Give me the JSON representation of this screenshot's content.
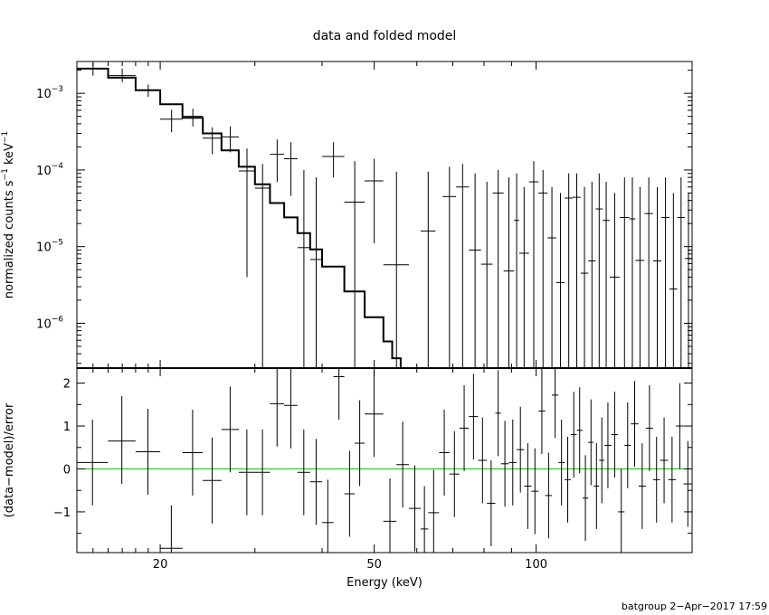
{
  "chart_data": [
    {
      "type": "line",
      "title": "data and folded model",
      "xlabel": "Energy (keV)",
      "ylabel": "normalized counts s⁻¹ keV⁻¹",
      "ylabel_parts": {
        "a": "normalized counts s",
        "b": "−1",
        "c": " keV",
        "d": "−1"
      },
      "xscale": "log",
      "yscale": "log",
      "xlim": [
        14.0,
        195.0
      ],
      "ylim": [
        2.6e-07,
        0.0026
      ],
      "x_ticks": [
        {
          "v": 20,
          "label": "20"
        },
        {
          "v": 50,
          "label": "50"
        },
        {
          "v": 100,
          "label": "100"
        }
      ],
      "y_ticks": [
        {
          "v": 0.001,
          "base": "10",
          "exp": "−3"
        },
        {
          "v": 0.0001,
          "base": "10",
          "exp": "−4"
        },
        {
          "v": 1e-05,
          "base": "10",
          "exp": "−5"
        },
        {
          "v": 1e-06,
          "base": "10",
          "exp": "−6"
        }
      ],
      "data_points": [
        {
          "x": 15.0,
          "xlo": 14.0,
          "xhi": 16.0,
          "y": 0.0021,
          "ylo": 0.0017,
          "yhi": 0.0025
        },
        {
          "x": 17.0,
          "xlo": 16.0,
          "xhi": 18.0,
          "y": 0.0017,
          "ylo": 0.0014,
          "yhi": 0.0021
        },
        {
          "x": 19.0,
          "xlo": 18.0,
          "xhi": 20.0,
          "y": 0.0011,
          "ylo": 0.0009,
          "yhi": 0.0013
        },
        {
          "x": 21.0,
          "xlo": 20.0,
          "xhi": 22.0,
          "y": 0.00046,
          "ylo": 0.00031,
          "yhi": 0.00061
        },
        {
          "x": 23.0,
          "xlo": 22.0,
          "xhi": 24.0,
          "y": 0.0005,
          "ylo": 0.00037,
          "yhi": 0.00063
        },
        {
          "x": 25.0,
          "xlo": 24.0,
          "xhi": 26.0,
          "y": 0.00026,
          "ylo": 0.00016,
          "yhi": 0.00036
        },
        {
          "x": 27.0,
          "xlo": 26.0,
          "xhi": 28.0,
          "y": 0.00027,
          "ylo": 0.00017,
          "yhi": 0.00037
        },
        {
          "x": 29.0,
          "xlo": 28.0,
          "xhi": 30.0,
          "y": 9.7e-05,
          "ylo": 4e-06,
          "yhi": 0.00019
        },
        {
          "x": 31.0,
          "xlo": 30.0,
          "xhi": 32.0,
          "y": 5.8e-05,
          "ylo": 2.6e-07,
          "yhi": 0.00012
        },
        {
          "x": 33.0,
          "xlo": 32.0,
          "xhi": 34.0,
          "y": 0.00016,
          "ylo": 7e-05,
          "yhi": 0.00025
        },
        {
          "x": 35.0,
          "xlo": 34.0,
          "xhi": 36.0,
          "y": 0.00014,
          "ylo": 4.6e-05,
          "yhi": 0.00023
        },
        {
          "x": 37.0,
          "xlo": 36.0,
          "xhi": 38.0,
          "y": 9.7e-06,
          "ylo": 2.6e-07,
          "yhi": 0.0001
        },
        {
          "x": 39.0,
          "xlo": 38.0,
          "xhi": 40.0,
          "y": 6.8e-06,
          "ylo": 2.6e-07,
          "yhi": 8e-05
        },
        {
          "x": 42.0,
          "xlo": 40.0,
          "xhi": 44.0,
          "y": 0.00015,
          "ylo": 8e-05,
          "yhi": 0.00023
        },
        {
          "x": 46.0,
          "xlo": 44.0,
          "xhi": 48.0,
          "y": 3.8e-05,
          "ylo": 2.6e-07,
          "yhi": 0.00013
        },
        {
          "x": 50.0,
          "xlo": 48.0,
          "xhi": 52.0,
          "y": 7.2e-05,
          "ylo": 1.1e-05,
          "yhi": 0.00014
        },
        {
          "x": 55.0,
          "xlo": 52.0,
          "xhi": 58.0,
          "y": 5.8e-06,
          "ylo": 2.6e-07,
          "yhi": 9.5e-05
        },
        {
          "x": 63.0,
          "xlo": 61.0,
          "xhi": 65.0,
          "y": 1.6e-05,
          "ylo": 2.6e-07,
          "yhi": 9.5e-05
        },
        {
          "x": 69.0,
          "xlo": 67.0,
          "xhi": 71.0,
          "y": 4.5e-05,
          "ylo": 2.6e-07,
          "yhi": 0.00011
        },
        {
          "x": 73.0,
          "xlo": 71.0,
          "xhi": 75.0,
          "y": 6e-05,
          "ylo": 2.6e-07,
          "yhi": 0.00012
        },
        {
          "x": 77.0,
          "xlo": 75.0,
          "xhi": 79.0,
          "y": 9e-06,
          "ylo": 2.6e-07,
          "yhi": 9e-05
        },
        {
          "x": 81.0,
          "xlo": 79.0,
          "xhi": 83.0,
          "y": 5.9e-06,
          "ylo": 2.6e-07,
          "yhi": 7e-05
        },
        {
          "x": 85.0,
          "xlo": 83.0,
          "xhi": 87.0,
          "y": 5e-05,
          "ylo": 2.6e-07,
          "yhi": 0.0001
        },
        {
          "x": 89.0,
          "xlo": 87.0,
          "xhi": 91.0,
          "y": 4.8e-06,
          "ylo": 2.6e-07,
          "yhi": 8e-05
        },
        {
          "x": 92.0,
          "xlo": 91.0,
          "xhi": 93.0,
          "y": 2.2e-05,
          "ylo": 2.6e-07,
          "yhi": 9e-05
        },
        {
          "x": 95.0,
          "xlo": 93.0,
          "xhi": 97.0,
          "y": 8.2e-06,
          "ylo": 2.6e-07,
          "yhi": 6e-05
        },
        {
          "x": 99.0,
          "xlo": 97.0,
          "xhi": 101.0,
          "y": 7e-05,
          "ylo": 2.6e-07,
          "yhi": 0.00013
        },
        {
          "x": 103.0,
          "xlo": 101.0,
          "xhi": 105.0,
          "y": 5e-05,
          "ylo": 2.6e-07,
          "yhi": 0.0001
        },
        {
          "x": 107.0,
          "xlo": 105.0,
          "xhi": 109.0,
          "y": 1.3e-05,
          "ylo": 2.6e-07,
          "yhi": 6e-05
        },
        {
          "x": 111.0,
          "xlo": 109.0,
          "xhi": 113.0,
          "y": 3.4e-06,
          "ylo": 2.6e-07,
          "yhi": 5e-05
        },
        {
          "x": 115.0,
          "xlo": 113.0,
          "xhi": 117.0,
          "y": 4.3e-05,
          "ylo": 2.6e-07,
          "yhi": 9e-05
        },
        {
          "x": 119.0,
          "xlo": 117.0,
          "xhi": 121.0,
          "y": 4.4e-05,
          "ylo": 2.6e-07,
          "yhi": 9e-05
        },
        {
          "x": 123.0,
          "xlo": 121.0,
          "xhi": 125.0,
          "y": 4.5e-06,
          "ylo": 2.6e-07,
          "yhi": 6e-05
        },
        {
          "x": 127.0,
          "xlo": 125.0,
          "xhi": 129.0,
          "y": 6.5e-06,
          "ylo": 2.6e-07,
          "yhi": 7e-05
        },
        {
          "x": 131.0,
          "xlo": 129.0,
          "xhi": 133.0,
          "y": 3.1e-05,
          "ylo": 2.6e-07,
          "yhi": 9e-05
        },
        {
          "x": 135.0,
          "xlo": 133.0,
          "xhi": 137.0,
          "y": 2.2e-05,
          "ylo": 2.6e-07,
          "yhi": 7e-05
        },
        {
          "x": 140.0,
          "xlo": 137.0,
          "xhi": 143.0,
          "y": 4e-06,
          "ylo": 2.6e-07,
          "yhi": 5e-05
        },
        {
          "x": 146.0,
          "xlo": 143.0,
          "xhi": 149.0,
          "y": 2.4e-05,
          "ylo": 2.6e-07,
          "yhi": 8e-05
        },
        {
          "x": 151.0,
          "xlo": 149.0,
          "xhi": 153.0,
          "y": 2.3e-05,
          "ylo": 2.6e-07,
          "yhi": 8e-05
        },
        {
          "x": 156.0,
          "xlo": 153.0,
          "xhi": 159.0,
          "y": 6.6e-06,
          "ylo": 2.6e-07,
          "yhi": 6e-05
        },
        {
          "x": 162.0,
          "xlo": 159.0,
          "xhi": 165.0,
          "y": 2.7e-05,
          "ylo": 2.6e-07,
          "yhi": 8e-05
        },
        {
          "x": 168.0,
          "xlo": 165.0,
          "xhi": 171.0,
          "y": 6.5e-06,
          "ylo": 2.6e-07,
          "yhi": 6e-05
        },
        {
          "x": 174.0,
          "xlo": 171.0,
          "xhi": 177.0,
          "y": 2.4e-05,
          "ylo": 2.6e-07,
          "yhi": 8e-05
        },
        {
          "x": 180.0,
          "xlo": 177.0,
          "xhi": 183.0,
          "y": 2.8e-06,
          "ylo": 2.6e-07,
          "yhi": 5e-05
        },
        {
          "x": 186.0,
          "xlo": 183.0,
          "xhi": 189.0,
          "y": 2.4e-05,
          "ylo": 2.6e-07,
          "yhi": 8e-05
        },
        {
          "x": 192.0,
          "xlo": 189.0,
          "xhi": 195.0,
          "y": 7e-06,
          "ylo": 2.6e-07,
          "yhi": 5e-05
        }
      ],
      "model_steps": [
        {
          "xlo": 14.0,
          "xhi": 16.0,
          "y": 0.0021
        },
        {
          "xlo": 16.0,
          "xhi": 18.0,
          "y": 0.0016
        },
        {
          "xlo": 18.0,
          "xhi": 20.0,
          "y": 0.0011
        },
        {
          "xlo": 20.0,
          "xhi": 22.0,
          "y": 0.00072
        },
        {
          "xlo": 22.0,
          "xhi": 24.0,
          "y": 0.00048
        },
        {
          "xlo": 24.0,
          "xhi": 26.0,
          "y": 0.0003
        },
        {
          "xlo": 26.0,
          "xhi": 28.0,
          "y": 0.00018
        },
        {
          "xlo": 28.0,
          "xhi": 30.0,
          "y": 0.00011
        },
        {
          "xlo": 30.0,
          "xhi": 32.0,
          "y": 6.5e-05
        },
        {
          "xlo": 32.0,
          "xhi": 34.0,
          "y": 3.7e-05
        },
        {
          "xlo": 34.0,
          "xhi": 36.0,
          "y": 2.4e-05
        },
        {
          "xlo": 36.0,
          "xhi": 38.0,
          "y": 1.5e-05
        },
        {
          "xlo": 38.0,
          "xhi": 40.0,
          "y": 9.2e-06
        },
        {
          "xlo": 40.0,
          "xhi": 44.0,
          "y": 5.5e-06
        },
        {
          "xlo": 44.0,
          "xhi": 48.0,
          "y": 2.6e-06
        },
        {
          "xlo": 48.0,
          "xhi": 52.0,
          "y": 1.2e-06
        },
        {
          "xlo": 52.0,
          "xhi": 54.0,
          "y": 5.8e-07
        },
        {
          "xlo": 54.0,
          "xhi": 56.0,
          "y": 3.5e-07
        }
      ]
    },
    {
      "type": "scatter",
      "xlabel": "Energy (keV)",
      "ylabel": "(data−model)/error",
      "xscale": "log",
      "xlim": [
        14.0,
        195.0
      ],
      "ylim": [
        -1.95,
        2.35
      ],
      "y_ticks": [
        {
          "v": 2,
          "label": "2"
        },
        {
          "v": 1,
          "label": "1"
        },
        {
          "v": 0,
          "label": "0"
        },
        {
          "v": -1,
          "label": "−1"
        }
      ],
      "zero_line": 0,
      "zero_line_color": "#00cc00",
      "residuals": [
        {
          "xlo": 14.0,
          "xhi": 16.0,
          "y": 0.15,
          "ylo": -0.85,
          "yhi": 1.15
        },
        {
          "xlo": 16.0,
          "xhi": 18.0,
          "y": 0.65,
          "ylo": -0.35,
          "yhi": 1.7
        },
        {
          "xlo": 18.0,
          "xhi": 20.0,
          "y": 0.4,
          "ylo": -0.6,
          "yhi": 1.4
        },
        {
          "xlo": 20.0,
          "xhi": 22.0,
          "y": -1.85,
          "ylo": -1.95,
          "yhi": -0.85
        },
        {
          "xlo": 22.0,
          "xhi": 24.0,
          "y": 0.38,
          "ylo": -0.62,
          "yhi": 1.38
        },
        {
          "xlo": 24.0,
          "xhi": 26.0,
          "y": -0.27,
          "ylo": -1.27,
          "yhi": 0.73
        },
        {
          "xlo": 26.0,
          "xhi": 28.0,
          "y": 0.92,
          "ylo": -0.08,
          "yhi": 1.92
        },
        {
          "xlo": 28.0,
          "xhi": 30.0,
          "y": -0.08,
          "ylo": -1.08,
          "yhi": 0.92
        },
        {
          "xlo": 30.0,
          "xhi": 32.0,
          "y": -0.08,
          "ylo": -1.08,
          "yhi": 0.92
        },
        {
          "xlo": 32.0,
          "xhi": 34.0,
          "y": 1.52,
          "ylo": 0.52,
          "yhi": 2.35
        },
        {
          "xlo": 34.0,
          "xhi": 36.0,
          "y": 1.48,
          "ylo": 0.48,
          "yhi": 2.35
        },
        {
          "xlo": 36.0,
          "xhi": 38.0,
          "y": -0.08,
          "ylo": -1.08,
          "yhi": 0.92
        },
        {
          "xlo": 38.0,
          "xhi": 40.0,
          "y": -0.3,
          "ylo": -1.3,
          "yhi": 0.7
        },
        {
          "xlo": 40.0,
          "xhi": 42.0,
          "y": -1.25,
          "ylo": -1.95,
          "yhi": -0.25
        },
        {
          "xlo": 42.0,
          "xhi": 44.0,
          "y": 2.15,
          "ylo": 1.15,
          "yhi": 2.35
        },
        {
          "xlo": 44.0,
          "xhi": 46.0,
          "y": -0.58,
          "ylo": -1.58,
          "yhi": 0.42
        },
        {
          "xlo": 46.0,
          "xhi": 48.0,
          "y": 0.6,
          "ylo": -0.4,
          "yhi": 1.6
        },
        {
          "xlo": 48.0,
          "xhi": 52.0,
          "y": 1.28,
          "ylo": 0.28,
          "yhi": 2.28
        },
        {
          "xlo": 52.0,
          "xhi": 55.0,
          "y": -1.22,
          "ylo": -1.95,
          "yhi": -0.22
        },
        {
          "xlo": 55.0,
          "xhi": 58.0,
          "y": 0.1,
          "ylo": -0.9,
          "yhi": 1.1
        },
        {
          "xlo": 58.0,
          "xhi": 61.0,
          "y": -0.92,
          "ylo": -1.92,
          "yhi": 0.08
        },
        {
          "xlo": 61.0,
          "xhi": 63.0,
          "y": -1.4,
          "ylo": -1.95,
          "yhi": -0.4
        },
        {
          "xlo": 63.0,
          "xhi": 66.0,
          "y": -1.02,
          "ylo": -1.95,
          "yhi": -0.02
        },
        {
          "xlo": 66.0,
          "xhi": 69.0,
          "y": 0.38,
          "ylo": -0.62,
          "yhi": 1.38
        },
        {
          "xlo": 69.0,
          "xhi": 72.0,
          "y": -0.12,
          "ylo": -1.12,
          "yhi": 0.88
        },
        {
          "xlo": 72.0,
          "xhi": 75.0,
          "y": 0.95,
          "ylo": -0.05,
          "yhi": 1.95
        },
        {
          "xlo": 75.0,
          "xhi": 78.0,
          "y": 1.22,
          "ylo": 0.22,
          "yhi": 2.22
        },
        {
          "xlo": 78.0,
          "xhi": 81.0,
          "y": 0.2,
          "ylo": -0.8,
          "yhi": 1.2
        },
        {
          "xlo": 81.0,
          "xhi": 84.0,
          "y": -0.8,
          "ylo": -1.8,
          "yhi": 0.2
        },
        {
          "xlo": 84.0,
          "xhi": 86.0,
          "y": 1.3,
          "ylo": 0.3,
          "yhi": 2.3
        },
        {
          "xlo": 86.0,
          "xhi": 89.0,
          "y": 0.12,
          "ylo": -0.88,
          "yhi": 1.12
        },
        {
          "xlo": 89.0,
          "xhi": 92.0,
          "y": 0.15,
          "ylo": -0.85,
          "yhi": 1.15
        },
        {
          "xlo": 92.0,
          "xhi": 95.0,
          "y": 0.45,
          "ylo": -0.55,
          "yhi": 1.45
        },
        {
          "xlo": 95.0,
          "xhi": 98.0,
          "y": -0.4,
          "ylo": -1.4,
          "yhi": 0.6
        },
        {
          "xlo": 98.0,
          "xhi": 101.0,
          "y": -0.52,
          "ylo": -1.52,
          "yhi": 0.48
        },
        {
          "xlo": 101.0,
          "xhi": 104.0,
          "y": 1.35,
          "ylo": 0.35,
          "yhi": 2.35
        },
        {
          "xlo": 104.0,
          "xhi": 107.0,
          "y": -0.62,
          "ylo": -1.62,
          "yhi": 0.38
        },
        {
          "xlo": 107.0,
          "xhi": 110.0,
          "y": 1.72,
          "ylo": 0.72,
          "yhi": 2.35
        },
        {
          "xlo": 110.0,
          "xhi": 113.0,
          "y": 0.15,
          "ylo": -0.85,
          "yhi": 1.15
        },
        {
          "xlo": 113.0,
          "xhi": 116.0,
          "y": -0.25,
          "ylo": -1.25,
          "yhi": 0.75
        },
        {
          "xlo": 116.0,
          "xhi": 119.0,
          "y": 0.8,
          "ylo": -0.2,
          "yhi": 1.8
        },
        {
          "xlo": 119.0,
          "xhi": 122.0,
          "y": 0.9,
          "ylo": -0.1,
          "yhi": 1.9
        },
        {
          "xlo": 122.0,
          "xhi": 125.0,
          "y": -0.68,
          "ylo": -1.68,
          "yhi": 0.32
        },
        {
          "xlo": 125.0,
          "xhi": 128.0,
          "y": 0.62,
          "ylo": -0.38,
          "yhi": 1.62
        },
        {
          "xlo": 128.0,
          "xhi": 131.0,
          "y": -0.4,
          "ylo": -1.4,
          "yhi": 0.6
        },
        {
          "xlo": 131.0,
          "xhi": 134.0,
          "y": 0.2,
          "ylo": -0.8,
          "yhi": 1.2
        },
        {
          "xlo": 134.0,
          "xhi": 138.0,
          "y": 0.55,
          "ylo": -0.45,
          "yhi": 1.55
        },
        {
          "xlo": 138.0,
          "xhi": 142.0,
          "y": 0.8,
          "ylo": -0.2,
          "yhi": 1.8
        },
        {
          "xlo": 142.0,
          "xhi": 146.0,
          "y": -1.0,
          "ylo": -1.95,
          "yhi": 0.0
        },
        {
          "xlo": 146.0,
          "xhi": 150.0,
          "y": 0.55,
          "ylo": -0.45,
          "yhi": 1.55
        },
        {
          "xlo": 150.0,
          "xhi": 155.0,
          "y": 1.05,
          "ylo": 0.05,
          "yhi": 2.05
        },
        {
          "xlo": 155.0,
          "xhi": 160.0,
          "y": -0.4,
          "ylo": -1.4,
          "yhi": 0.6
        },
        {
          "xlo": 160.0,
          "xhi": 165.0,
          "y": 0.95,
          "ylo": -0.05,
          "yhi": 1.95
        },
        {
          "xlo": 165.0,
          "xhi": 170.0,
          "y": -0.25,
          "ylo": -1.25,
          "yhi": 0.75
        },
        {
          "xlo": 170.0,
          "xhi": 176.0,
          "y": 0.2,
          "ylo": -0.8,
          "yhi": 1.2
        },
        {
          "xlo": 176.0,
          "xhi": 182.0,
          "y": -0.25,
          "ylo": -1.25,
          "yhi": 0.75
        },
        {
          "xlo": 182.0,
          "xhi": 188.0,
          "y": 1.0,
          "ylo": 0.0,
          "yhi": 2.0
        },
        {
          "xlo": 188.0,
          "xhi": 195.0,
          "y": -0.35,
          "ylo": -1.35,
          "yhi": 0.65
        }
      ]
    }
  ],
  "footer": {
    "text": "batgroup  2−Apr−2017 17:59"
  }
}
